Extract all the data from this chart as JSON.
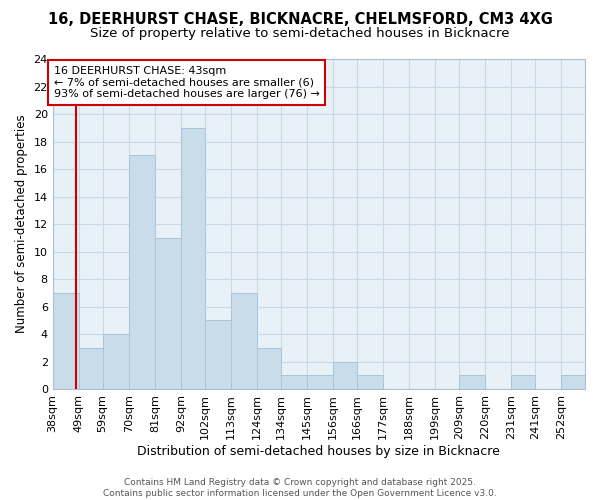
{
  "title_line1": "16, DEERHURST CHASE, BICKNACRE, CHELMSFORD, CM3 4XG",
  "title_line2": "Size of property relative to semi-detached houses in Bicknacre",
  "xlabel": "Distribution of semi-detached houses by size in Bicknacre",
  "ylabel": "Number of semi-detached properties",
  "categories": [
    "38sqm",
    "49sqm",
    "59sqm",
    "70sqm",
    "81sqm",
    "92sqm",
    "102sqm",
    "113sqm",
    "124sqm",
    "134sqm",
    "145sqm",
    "156sqm",
    "166sqm",
    "177sqm",
    "188sqm",
    "199sqm",
    "209sqm",
    "220sqm",
    "231sqm",
    "241sqm",
    "252sqm"
  ],
  "values": [
    7,
    3,
    4,
    17,
    11,
    19,
    5,
    7,
    3,
    1,
    1,
    2,
    1,
    0,
    0,
    0,
    1,
    0,
    1,
    0,
    1
  ],
  "bin_edges": [
    33,
    44,
    54,
    65,
    76,
    87,
    97,
    108,
    119,
    129,
    140,
    151,
    161,
    172,
    183,
    194,
    204,
    215,
    226,
    236,
    247,
    257
  ],
  "bar_color": "#c9dcea",
  "bar_edge_color": "#aac4d8",
  "property_size": 43,
  "red_line_color": "#cc0000",
  "annotation_text": "16 DEERHURST CHASE: 43sqm\n← 7% of semi-detached houses are smaller (6)\n93% of semi-detached houses are larger (76) →",
  "annotation_box_edge_color": "#cc0000",
  "annotation_box_face_color": "#ffffff",
  "ylim": [
    0,
    24
  ],
  "yticks": [
    0,
    2,
    4,
    6,
    8,
    10,
    12,
    14,
    16,
    18,
    20,
    22,
    24
  ],
  "grid_color": "#c8d8e4",
  "background_color": "#e8f0f8",
  "footer_text": "Contains HM Land Registry data © Crown copyright and database right 2025.\nContains public sector information licensed under the Open Government Licence v3.0.",
  "title_fontsize": 10.5,
  "subtitle_fontsize": 9.5,
  "xlabel_fontsize": 9,
  "ylabel_fontsize": 8.5,
  "tick_fontsize": 8,
  "annotation_fontsize": 8,
  "footer_fontsize": 6.5
}
